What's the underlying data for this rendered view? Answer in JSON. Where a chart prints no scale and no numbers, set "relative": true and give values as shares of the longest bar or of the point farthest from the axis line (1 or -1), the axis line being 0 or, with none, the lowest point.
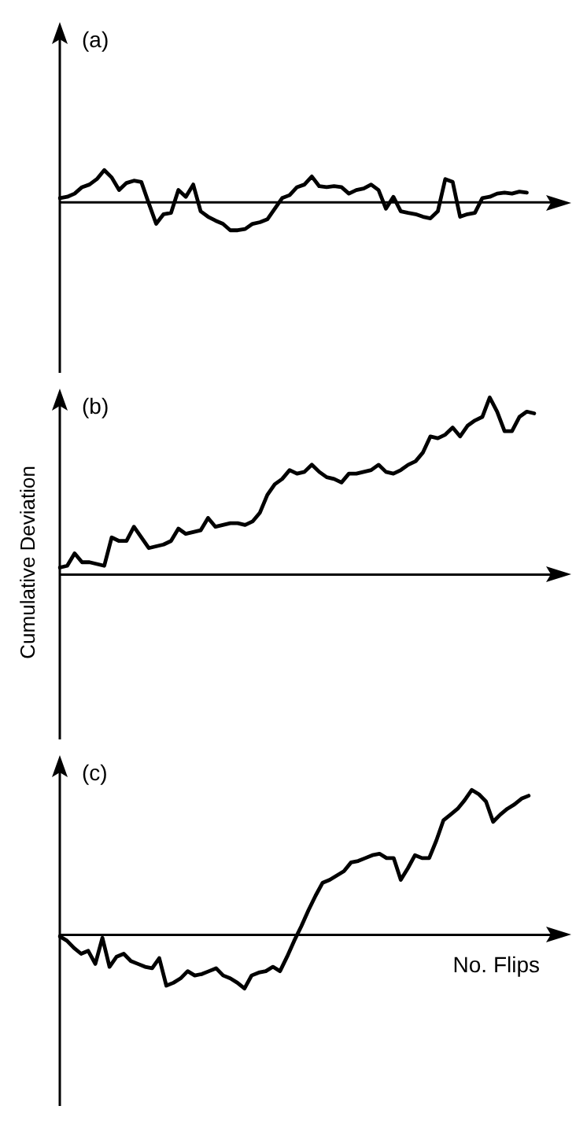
{
  "chart_data": [
    {
      "type": "line",
      "title": "(a)",
      "relative": true,
      "categories": [
        null,
        null,
        null,
        null,
        null,
        null,
        null,
        null,
        null,
        null,
        null,
        null,
        null,
        null,
        null,
        null,
        null,
        null,
        null,
        null,
        null,
        null,
        null,
        null,
        null,
        null,
        null,
        null,
        null,
        null,
        null,
        null,
        null,
        null,
        null,
        null,
        null,
        null,
        null,
        null,
        null,
        null,
        null,
        null,
        null,
        null,
        null,
        null,
        null,
        null,
        null,
        null,
        null,
        null,
        null,
        null,
        null,
        null,
        null,
        null,
        null,
        null,
        null,
        null,
        null,
        null,
        null,
        null,
        null,
        null
      ],
      "series": [
        {
          "color": "#000000",
          "values": [
            0.13,
            0.17,
            0.27,
            0.47,
            0.55,
            0.72,
            1,
            0.77,
            0.38,
            0.6,
            0.67,
            0.63,
            -0.03,
            -0.67,
            -0.37,
            -0.33,
            0.38,
            0.17,
            0.55,
            -0.28,
            -0.45,
            -0.57,
            -0.67,
            -0.87,
            -0.87,
            -0.83,
            -0.67,
            -0.62,
            -0.53,
            -0.2,
            0.13,
            0.22,
            0.47,
            0.55,
            0.8,
            0.5,
            0.47,
            0.5,
            0.47,
            0.27,
            0.38,
            0.43,
            0.55,
            0.38,
            -0.2,
            0.17,
            -0.28,
            -0.33,
            -0.37,
            -0.45,
            -0.5,
            -0.28,
            0.72,
            0.63,
            -0.45,
            -0.37,
            -0.33,
            0.13,
            0.17,
            0.27,
            0.3,
            0.27,
            0.33,
            0.3,
            null,
            null,
            null,
            null,
            null,
            null
          ]
        }
      ]
    },
    {
      "type": "line",
      "title": "(b)",
      "ylabel": "Cumulative Deviation",
      "relative": true,
      "categories": [
        null,
        null,
        null,
        null,
        null,
        null,
        null,
        null,
        null,
        null,
        null,
        null,
        null,
        null,
        null,
        null,
        null,
        null,
        null,
        null,
        null,
        null,
        null,
        null,
        null,
        null,
        null,
        null,
        null,
        null,
        null,
        null,
        null,
        null,
        null,
        null,
        null,
        null,
        null,
        null,
        null,
        null,
        null,
        null,
        null,
        null,
        null,
        null,
        null,
        null,
        null,
        null,
        null,
        null,
        null,
        null,
        null,
        null,
        null,
        null,
        null,
        null,
        null,
        null,
        null,
        null,
        null,
        null,
        null,
        null
      ],
      "series": [
        {
          "color": "#000000",
          "values": [
            0.04,
            0.05,
            0.12,
            0.07,
            0.07,
            0.06,
            0.05,
            0.21,
            0.19,
            0.19,
            0.27,
            0.21,
            0.15,
            0.16,
            0.17,
            0.19,
            0.26,
            0.23,
            0.24,
            0.25,
            0.32,
            0.27,
            0.28,
            0.29,
            0.29,
            0.28,
            0.3,
            0.35,
            0.45,
            0.51,
            0.54,
            0.59,
            0.57,
            0.58,
            0.62,
            0.58,
            0.55,
            0.54,
            0.52,
            0.57,
            0.57,
            0.58,
            0.59,
            0.62,
            0.58,
            0.57,
            0.59,
            0.62,
            0.64,
            0.69,
            0.78,
            0.77,
            0.79,
            0.83,
            0.78,
            0.84,
            0.87,
            0.89,
            1,
            0.92,
            0.81,
            0.81,
            0.89,
            0.92,
            0.91,
            null,
            null,
            null,
            null,
            null
          ]
        }
      ]
    },
    {
      "type": "line",
      "title": "(c)",
      "xlabel": "No. Flips",
      "relative": true,
      "categories": [
        null,
        null,
        null,
        null,
        null,
        null,
        null,
        null,
        null,
        null,
        null,
        null,
        null,
        null,
        null,
        null,
        null,
        null,
        null,
        null,
        null,
        null,
        null,
        null,
        null,
        null,
        null,
        null,
        null,
        null,
        null,
        null,
        null,
        null,
        null,
        null,
        null,
        null,
        null,
        null,
        null,
        null,
        null,
        null,
        null,
        null,
        null,
        null,
        null,
        null,
        null,
        null,
        null,
        null,
        null,
        null,
        null,
        null,
        null,
        null,
        null,
        null,
        null,
        null,
        null,
        null,
        null,
        null,
        null,
        null,
        null,
        null,
        null
      ],
      "series": [
        {
          "color": "#000000",
          "values": [
            -0.01,
            -0.04,
            -0.09,
            -0.13,
            -0.11,
            -0.2,
            -0.02,
            -0.22,
            -0.15,
            -0.13,
            -0.18,
            -0.2,
            -0.22,
            -0.23,
            -0.16,
            -0.35,
            -0.33,
            -0.3,
            -0.25,
            -0.28,
            -0.27,
            -0.25,
            -0.23,
            -0.28,
            -0.3,
            -0.33,
            -0.37,
            -0.28,
            -0.26,
            -0.25,
            -0.22,
            -0.25,
            -0.15,
            -0.04,
            0.06,
            0.17,
            0.27,
            0.36,
            0.38,
            0.41,
            0.44,
            0.5,
            0.51,
            0.53,
            0.55,
            0.56,
            0.53,
            0.53,
            0.38,
            0.46,
            0.55,
            0.53,
            0.53,
            0.65,
            0.79,
            0.83,
            0.87,
            0.93,
            1,
            0.97,
            0.92,
            0.78,
            0.83,
            0.87,
            0.9,
            0.94,
            0.96,
            null,
            null,
            null,
            null,
            null,
            null
          ]
        }
      ]
    }
  ]
}
